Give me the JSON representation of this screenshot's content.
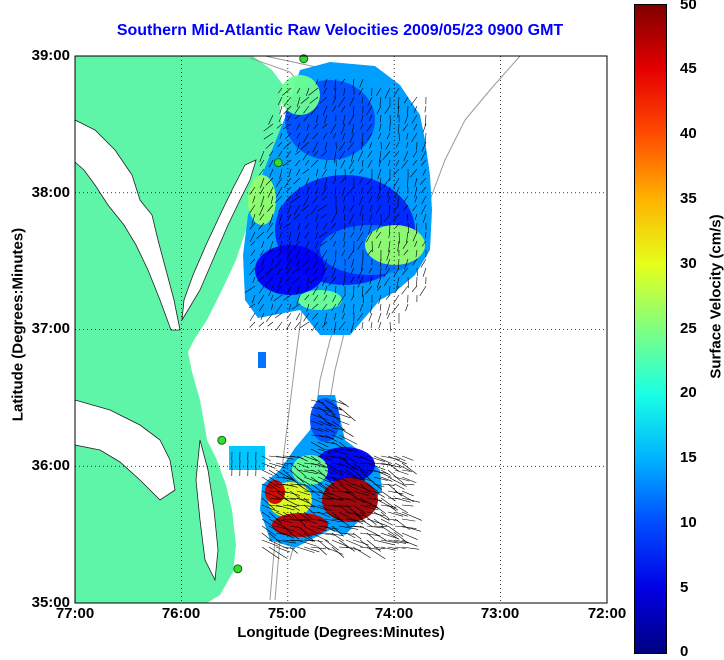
{
  "title": "Southern Mid-Atlantic Raw Velocities 2009/05/23 0900 GMT",
  "x_axis": {
    "label": "Longitude (Degrees:Minutes)",
    "ticks": [
      "77:00",
      "76:00",
      "75:00",
      "74:00",
      "73:00",
      "72:00"
    ]
  },
  "y_axis": {
    "label": "Latitude (Degrees:Minutes)",
    "ticks": [
      "39:00",
      "38:00",
      "37:00",
      "36:00",
      "35:00"
    ]
  },
  "colorbar": {
    "label": "Surface Velocity (cm/s)",
    "ticks": [
      "50",
      "45",
      "40",
      "35",
      "30",
      "25",
      "20",
      "15",
      "10",
      "5",
      "0"
    ],
    "range": [
      0,
      50
    ]
  },
  "colors": {
    "land": "#5ef5a9",
    "title": "#0000ff",
    "bathymetry": "#999999"
  },
  "map": {
    "lon_range": [
      -77,
      -72
    ],
    "lat_range": [
      35,
      39
    ],
    "grid": true,
    "radar_sites": [
      {
        "lon": -74.85,
        "lat": 38.98
      },
      {
        "lon": -75.09,
        "lat": 38.22
      },
      {
        "lon": -75.62,
        "lat": 36.19
      },
      {
        "lon": -75.47,
        "lat": 35.25
      }
    ]
  }
}
